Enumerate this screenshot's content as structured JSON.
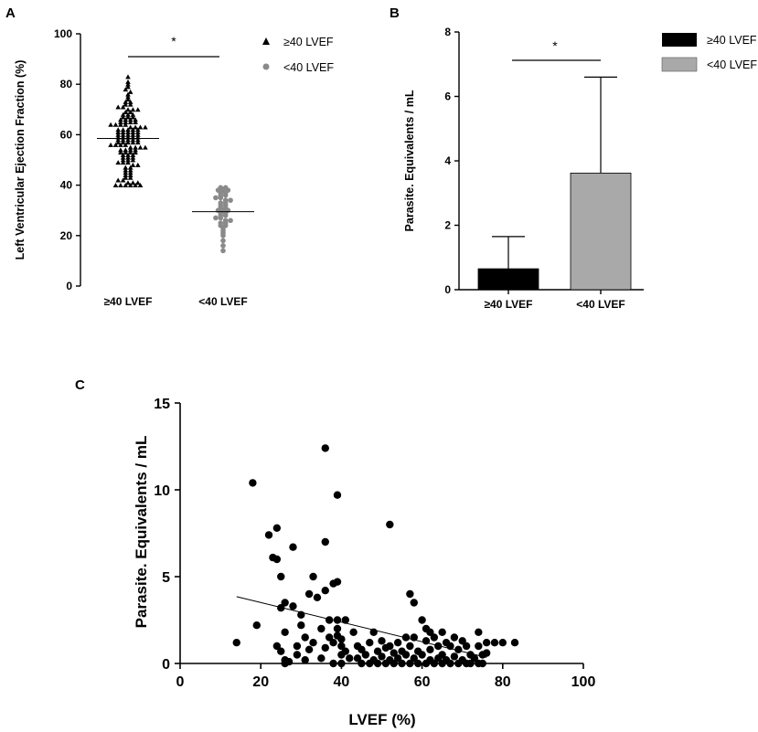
{
  "panel_labels": {
    "a": "A",
    "b": "B",
    "c": "C"
  },
  "chart_data": [
    {
      "panel": "A",
      "type": "scatter",
      "ylabel": "Left Ventricular Ejection Fraction (%)",
      "ylim": [
        0,
        100
      ],
      "yticks": [
        0,
        20,
        40,
        60,
        80,
        100
      ],
      "categories": [
        "≥40 LVEF",
        "<40 LVEF"
      ],
      "legend": [
        {
          "label": "≥40 LVEF",
          "marker": "triangle"
        },
        {
          "label": "<40 LVEF",
          "marker": "circle"
        }
      ],
      "medians": [
        58.5,
        29.5
      ],
      "significance": "*",
      "series": [
        {
          "name": "≥40 LVEF",
          "color": "#000000",
          "marker": "triangle",
          "values": [
            83,
            81,
            80,
            79,
            78,
            77,
            76,
            75,
            74,
            73,
            73,
            72,
            72,
            71,
            71,
            70,
            70,
            70,
            69,
            69,
            68,
            68,
            68,
            67,
            67,
            67,
            66,
            66,
            66,
            66,
            65,
            65,
            65,
            65,
            64,
            64,
            64,
            64,
            63,
            63,
            63,
            63,
            62,
            62,
            62,
            62,
            62,
            61,
            61,
            61,
            61,
            61,
            60,
            60,
            60,
            60,
            60,
            59,
            59,
            59,
            59,
            59,
            58,
            58,
            58,
            58,
            58,
            57,
            57,
            57,
            57,
            57,
            56,
            56,
            56,
            56,
            55,
            55,
            55,
            55,
            54,
            54,
            54,
            54,
            53,
            53,
            53,
            53,
            52,
            52,
            52,
            51,
            51,
            51,
            50,
            50,
            50,
            49,
            49,
            49,
            48,
            48,
            47,
            47,
            46,
            46,
            45,
            45,
            44,
            44,
            43,
            43,
            42,
            42,
            41,
            41,
            41,
            40,
            40,
            40,
            40,
            40,
            40
          ]
        },
        {
          "name": "<40 LVEF",
          "color": "#8a8a8a",
          "marker": "circle",
          "values": [
            39,
            39,
            38,
            38,
            38,
            37,
            37,
            36,
            36,
            35,
            35,
            34,
            34,
            33,
            33,
            32,
            32,
            31,
            31,
            30,
            30,
            30,
            29,
            29,
            28,
            28,
            27,
            27,
            26,
            26,
            25,
            25,
            24,
            24,
            23,
            22,
            21,
            20,
            18,
            16,
            14
          ]
        }
      ]
    },
    {
      "panel": "B",
      "type": "bar",
      "ylabel": "Parasite. Equivalents / mL",
      "ylim": [
        0,
        8
      ],
      "yticks": [
        0,
        2,
        4,
        6,
        8
      ],
      "categories": [
        "≥40 LVEF",
        "<40 LVEF"
      ],
      "values": [
        0.65,
        3.62
      ],
      "error_upper": [
        1.65,
        6.6
      ],
      "colors": [
        "#000000",
        "#a9a9a9"
      ],
      "legend": [
        {
          "label": "≥40 LVEF",
          "color": "#000000"
        },
        {
          "label": "<40 LVEF",
          "color": "#a9a9a9"
        }
      ],
      "significance": "*"
    },
    {
      "panel": "C",
      "type": "scatter",
      "xlabel": "LVEF (%)",
      "ylabel": "Parasite. Equivalents / mL",
      "xlim": [
        0,
        100
      ],
      "ylim": [
        0,
        15
      ],
      "xticks": [
        0,
        20,
        40,
        60,
        80,
        100
      ],
      "yticks": [
        0,
        5,
        10,
        15
      ],
      "regression": {
        "x": [
          14,
          76
        ],
        "y": [
          3.85,
          0.35
        ]
      },
      "points": [
        [
          14,
          1.2
        ],
        [
          18,
          10.4
        ],
        [
          19,
          2.2
        ],
        [
          22,
          7.4
        ],
        [
          23,
          6.1
        ],
        [
          24,
          6.0
        ],
        [
          24,
          7.8
        ],
        [
          24,
          1.0
        ],
        [
          25,
          5.0
        ],
        [
          25,
          3.2
        ],
        [
          25,
          0.7
        ],
        [
          26,
          3.5
        ],
        [
          26,
          1.8
        ],
        [
          26,
          0.2
        ],
        [
          26,
          0.0
        ],
        [
          27,
          0.1
        ],
        [
          28,
          6.7
        ],
        [
          28,
          3.3
        ],
        [
          29,
          1.0
        ],
        [
          29,
          0.5
        ],
        [
          30,
          2.8
        ],
        [
          30,
          2.2
        ],
        [
          31,
          1.5
        ],
        [
          31,
          0.2
        ],
        [
          32,
          4.0
        ],
        [
          32,
          0.8
        ],
        [
          33,
          5.0
        ],
        [
          33,
          1.2
        ],
        [
          34,
          3.8
        ],
        [
          35,
          2.0
        ],
        [
          35,
          0.3
        ],
        [
          36,
          12.4
        ],
        [
          36,
          7.0
        ],
        [
          36,
          4.2
        ],
        [
          36,
          0.9
        ],
        [
          37,
          2.5
        ],
        [
          37,
          1.5
        ],
        [
          38,
          4.6
        ],
        [
          38,
          1.2
        ],
        [
          38,
          0.0
        ],
        [
          39,
          9.7
        ],
        [
          39,
          4.7
        ],
        [
          39,
          2.5
        ],
        [
          39,
          2.0
        ],
        [
          39,
          1.6
        ],
        [
          40,
          1.4
        ],
        [
          40,
          1.0
        ],
        [
          40,
          0.5
        ],
        [
          40,
          0.0
        ],
        [
          41,
          2.5
        ],
        [
          41,
          0.7
        ],
        [
          42,
          0.3
        ],
        [
          43,
          1.8
        ],
        [
          44,
          1.0
        ],
        [
          44,
          0.3
        ],
        [
          45,
          0.8
        ],
        [
          45,
          0.0
        ],
        [
          46,
          0.5
        ],
        [
          47,
          1.2
        ],
        [
          47,
          0.0
        ],
        [
          48,
          1.8
        ],
        [
          48,
          0.2
        ],
        [
          49,
          0.7
        ],
        [
          49,
          0.0
        ],
        [
          50,
          1.3
        ],
        [
          50,
          0.4
        ],
        [
          51,
          0.9
        ],
        [
          51,
          0.0
        ],
        [
          52,
          8.0
        ],
        [
          52,
          1.0
        ],
        [
          52,
          0.2
        ],
        [
          53,
          0.6
        ],
        [
          53,
          0.0
        ],
        [
          54,
          1.2
        ],
        [
          54,
          0.3
        ],
        [
          55,
          0.7
        ],
        [
          55,
          0.0
        ],
        [
          56,
          1.5
        ],
        [
          56,
          0.5
        ],
        [
          57,
          4.0
        ],
        [
          57,
          1.0
        ],
        [
          57,
          0.0
        ],
        [
          58,
          3.5
        ],
        [
          58,
          1.5
        ],
        [
          58,
          0.3
        ],
        [
          59,
          0.7
        ],
        [
          59,
          0.0
        ],
        [
          60,
          2.5
        ],
        [
          60,
          0.5
        ],
        [
          61,
          2.0
        ],
        [
          61,
          1.3
        ],
        [
          61,
          0.0
        ],
        [
          62,
          1.8
        ],
        [
          62,
          0.8
        ],
        [
          62,
          0.2
        ],
        [
          63,
          1.5
        ],
        [
          63,
          0.0
        ],
        [
          64,
          1.0
        ],
        [
          64,
          0.3
        ],
        [
          65,
          1.8
        ],
        [
          65,
          0.5
        ],
        [
          65,
          0.0
        ],
        [
          66,
          1.2
        ],
        [
          66,
          0.2
        ],
        [
          67,
          1.0
        ],
        [
          67,
          0.0
        ],
        [
          68,
          1.5
        ],
        [
          68,
          0.4
        ],
        [
          69,
          0.8
        ],
        [
          69,
          0.0
        ],
        [
          70,
          1.3
        ],
        [
          70,
          0.2
        ],
        [
          71,
          1.0
        ],
        [
          71,
          0.0
        ],
        [
          72,
          0.5
        ],
        [
          72,
          0.0
        ],
        [
          73,
          0.3
        ],
        [
          74,
          1.8
        ],
        [
          74,
          1.0
        ],
        [
          74,
          0.0
        ],
        [
          75,
          0.5
        ],
        [
          75,
          0.0
        ],
        [
          76,
          1.2
        ],
        [
          76,
          0.6
        ],
        [
          78,
          1.2
        ],
        [
          80,
          1.2
        ],
        [
          83,
          1.2
        ]
      ]
    }
  ]
}
